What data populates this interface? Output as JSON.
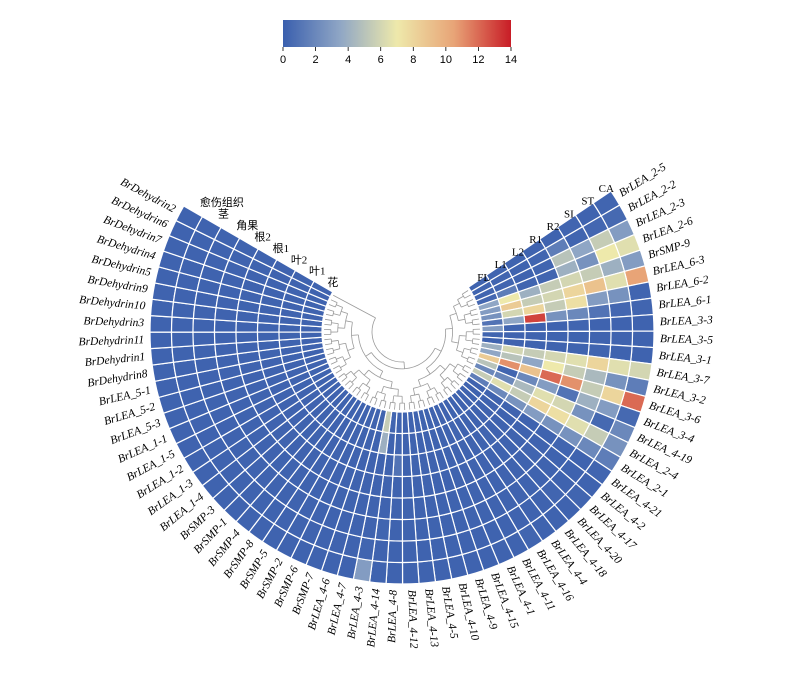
{
  "chart_data": {
    "type": "heatmap",
    "layout": "circular",
    "colorscale": {
      "min": 0,
      "max": 14,
      "ticks": [
        "0",
        "2",
        "4",
        "6",
        "8",
        "10",
        "12",
        "14"
      ],
      "stops": [
        "#3a5fae",
        "#8fa6c5",
        "#eee9ab",
        "#e8a477",
        "#c81c26"
      ]
    },
    "tracks": [
      {
        "code": "CA",
        "name": "愈伤组织"
      },
      {
        "code": "ST",
        "name": "茎"
      },
      {
        "code": "SI",
        "name": "角果"
      },
      {
        "code": "R2",
        "name": "根2"
      },
      {
        "code": "R1",
        "name": "根1"
      },
      {
        "code": "L2",
        "name": "叶2"
      },
      {
        "code": "L1",
        "name": "叶1"
      },
      {
        "code": "FL",
        "name": "花"
      }
    ],
    "genes": [
      "BrLEA_2-5",
      "BrLEA_2-2",
      "BrLEA_2-3",
      "BrLEA_2-6",
      "BrSMP-9",
      "BrLEA_6-3",
      "BrLEA_6-2",
      "BrLEA_6-1",
      "BrLEA_3-3",
      "BrLEA_3-5",
      "BrLEA_3-1",
      "BrLEA_3-7",
      "BrLEA_3-2",
      "BrLEA_3-6",
      "BrLEA_3-4",
      "BrLEA_4-19",
      "BrLEA_2-4",
      "BrLEA_2-1",
      "BrLEA_4-21",
      "BrLEA_4-2",
      "BrLEA_4-17",
      "BrLEA_4-20",
      "BrLEA_4-18",
      "BrLEA_4-4",
      "BrLEA_4-16",
      "BrLEA_4-11",
      "BrLEA_4-1",
      "BrLEA_4-15",
      "BrLEA_4-9",
      "BrLEA_4-10",
      "BrLEA_4-5",
      "BrLEA_4-13",
      "BrLEA_4-12",
      "BrLEA_4-8",
      "BrLEA_4-14",
      "BrLEA_4-3",
      "BrLEA_4-7",
      "BrLEA_4-6",
      "BrSMP-7",
      "BrSMP-6",
      "BrSMP-2",
      "BrSMP-5",
      "BrSMP-8",
      "BrSMP-4",
      "BrSMP-1",
      "BrSMP-3",
      "BrLEA_1-4",
      "BrLEA_1-3",
      "BrLEA_1-2",
      "BrLEA_1-5",
      "BrLEA_1-1",
      "BrLEA_5-3",
      "BrLEA_5-2",
      "BrLEA_5-1",
      "BrDehydrin8",
      "BrDehydrin1",
      "BrDehydrin11",
      "BrDehydrin3",
      "BrDehydrin10",
      "BrDehydrin9",
      "BrDehydrin5",
      "BrDehydrin4",
      "BrDehydrin7",
      "BrDehydrin6",
      "BrDehydrin2"
    ],
    "values": [
      [
        0.3,
        0.2,
        0.3,
        0.2,
        0.2,
        0.2,
        0.3,
        0.2
      ],
      [
        0.5,
        0.4,
        0.3,
        1.5,
        0.3,
        0.2,
        0.3,
        0.3
      ],
      [
        3.0,
        5.5,
        3.5,
        5.0,
        0.3,
        0.2,
        0.3,
        0.3
      ],
      [
        6.5,
        7.0,
        2.5,
        4.0,
        0.3,
        0.3,
        1.5,
        0.4
      ],
      [
        3.0,
        4.0,
        5.5,
        6.0,
        5.5,
        4.0,
        7.0,
        3.5
      ],
      [
        10.5,
        6.5,
        9.0,
        8.0,
        6.0,
        5.5,
        8.5,
        3.0
      ],
      [
        0.3,
        2.5,
        3.0,
        7.5,
        5.5,
        8.0,
        6.0,
        2.5
      ],
      [
        0.3,
        0.4,
        1.0,
        2.0,
        2.5,
        13.0,
        3.5,
        1.0
      ],
      [
        0.2,
        0.2,
        0.2,
        0.3,
        0.2,
        0.2,
        0.3,
        3.0
      ],
      [
        0.2,
        0.2,
        0.2,
        0.2,
        0.2,
        0.2,
        0.2,
        0.3
      ],
      [
        0.2,
        0.2,
        0.3,
        0.2,
        0.2,
        0.2,
        0.2,
        0.2
      ],
      [
        6.0,
        6.5,
        8.0,
        6.5,
        6.0,
        5.5,
        6.0,
        4.0
      ],
      [
        1.5,
        2.5,
        4.5,
        5.5,
        7.0,
        3.5,
        5.0,
        3.5
      ],
      [
        12.0,
        8.0,
        5.5,
        11.0,
        12.0,
        9.0,
        11.0,
        8.5
      ],
      [
        0.5,
        3.0,
        4.0,
        1.0,
        3.0,
        2.0,
        0.3,
        5.0
      ],
      [
        2.0,
        0.5,
        2.5,
        6.0,
        6.5,
        4.5,
        2.0,
        2.0
      ],
      [
        2.5,
        5.5,
        6.5,
        7.5,
        8.0,
        5.5,
        6.5,
        5.5
      ],
      [
        1.5,
        2.0,
        2.5,
        2.5,
        3.0,
        2.5,
        2.0,
        1.5
      ],
      [
        0.3,
        0.2,
        0.3,
        0.2,
        0.2,
        0.2,
        0.2,
        0.2
      ],
      [
        0.2,
        0.2,
        0.2,
        0.2,
        0.2,
        0.2,
        0.2,
        0.2
      ],
      [
        0.3,
        0.2,
        0.2,
        0.3,
        0.2,
        0.2,
        0.2,
        0.2
      ],
      [
        0.2,
        0.3,
        0.2,
        0.2,
        0.2,
        0.2,
        0.2,
        0.2
      ],
      [
        0.2,
        0.2,
        0.2,
        0.2,
        0.2,
        0.3,
        0.2,
        0.2
      ],
      [
        0.2,
        0.2,
        0.2,
        0.2,
        0.2,
        0.2,
        0.2,
        0.2
      ],
      [
        0.3,
        0.2,
        0.2,
        0.2,
        0.2,
        0.2,
        0.2,
        0.2
      ],
      [
        0.2,
        0.2,
        0.2,
        0.2,
        0.2,
        0.2,
        0.3,
        0.2
      ],
      [
        0.2,
        0.2,
        0.2,
        0.2,
        0.2,
        0.2,
        0.2,
        0.2
      ],
      [
        0.2,
        0.2,
        0.2,
        0.2,
        0.2,
        0.2,
        0.2,
        0.2
      ],
      [
        0.2,
        0.2,
        0.2,
        0.2,
        0.2,
        0.2,
        0.2,
        0.2
      ],
      [
        0.2,
        0.2,
        0.2,
        0.2,
        0.2,
        0.2,
        0.2,
        0.2
      ],
      [
        0.2,
        0.2,
        0.2,
        0.2,
        0.2,
        0.2,
        0.2,
        0.2
      ],
      [
        0.2,
        0.2,
        0.2,
        0.2,
        0.2,
        0.2,
        0.2,
        0.2
      ],
      [
        0.2,
        0.2,
        0.2,
        0.2,
        0.2,
        0.2,
        0.2,
        0.2
      ],
      [
        0.2,
        0.2,
        0.2,
        0.2,
        0.2,
        1.0,
        0.3,
        0.2
      ],
      [
        0.2,
        0.2,
        0.3,
        0.2,
        0.2,
        0.2,
        0.2,
        0.3
      ],
      [
        3.0,
        0.3,
        0.2,
        0.2,
        0.2,
        0.2,
        4.0,
        5.5
      ],
      [
        0.2,
        0.2,
        0.2,
        0.2,
        0.2,
        0.2,
        0.2,
        0.2
      ],
      [
        0.2,
        0.2,
        0.2,
        0.2,
        0.2,
        0.2,
        0.2,
        0.2
      ],
      [
        0.2,
        0.2,
        0.2,
        0.2,
        0.2,
        0.2,
        0.2,
        0.2
      ],
      [
        0.2,
        0.2,
        0.2,
        0.2,
        0.2,
        0.2,
        0.2,
        0.2
      ],
      [
        0.2,
        0.2,
        0.2,
        0.2,
        0.2,
        0.2,
        0.2,
        0.2
      ],
      [
        0.2,
        0.2,
        0.2,
        0.2,
        0.2,
        0.2,
        0.2,
        0.2
      ],
      [
        0.2,
        0.2,
        0.2,
        0.2,
        0.2,
        0.2,
        0.2,
        0.2
      ],
      [
        0.2,
        0.2,
        0.2,
        0.2,
        0.2,
        0.2,
        0.2,
        0.2
      ],
      [
        0.2,
        0.2,
        0.2,
        0.2,
        0.2,
        0.2,
        0.2,
        0.2
      ],
      [
        0.2,
        0.2,
        0.2,
        0.2,
        0.2,
        0.2,
        0.2,
        0.2
      ],
      [
        0.2,
        0.2,
        0.2,
        0.2,
        0.2,
        0.2,
        0.2,
        0.2
      ],
      [
        0.2,
        0.2,
        0.2,
        0.2,
        0.2,
        0.2,
        0.2,
        0.2
      ],
      [
        0.2,
        0.2,
        0.2,
        0.2,
        0.2,
        0.2,
        0.2,
        0.2
      ],
      [
        0.2,
        0.2,
        0.2,
        0.2,
        0.2,
        0.2,
        0.2,
        0.2
      ],
      [
        0.2,
        0.2,
        0.2,
        0.2,
        0.2,
        0.2,
        0.2,
        0.2
      ],
      [
        0.2,
        0.2,
        0.2,
        0.2,
        0.2,
        0.2,
        0.2,
        0.2
      ],
      [
        0.2,
        0.2,
        0.2,
        0.2,
        0.2,
        0.2,
        0.2,
        0.2
      ],
      [
        0.2,
        0.2,
        0.2,
        0.2,
        0.2,
        0.2,
        0.2,
        0.2
      ],
      [
        0.2,
        0.2,
        0.2,
        0.2,
        0.2,
        0.2,
        0.2,
        0.2
      ],
      [
        0.2,
        0.2,
        0.2,
        0.2,
        0.2,
        0.2,
        0.2,
        0.2
      ],
      [
        0.2,
        0.2,
        0.2,
        0.2,
        0.2,
        0.2,
        0.2,
        0.2
      ],
      [
        0.2,
        0.2,
        0.2,
        0.2,
        0.2,
        0.2,
        0.2,
        0.2
      ],
      [
        0.2,
        0.2,
        0.2,
        0.2,
        0.2,
        0.2,
        0.2,
        0.2
      ],
      [
        0.2,
        0.2,
        0.2,
        0.2,
        0.2,
        0.2,
        0.2,
        0.2
      ],
      [
        0.2,
        0.2,
        0.2,
        0.2,
        0.2,
        0.2,
        0.2,
        0.2
      ],
      [
        0.2,
        0.2,
        0.2,
        0.2,
        0.2,
        0.2,
        0.2,
        0.2
      ],
      [
        0.2,
        0.2,
        0.2,
        0.2,
        0.2,
        0.2,
        0.2,
        0.2
      ],
      [
        0.2,
        0.2,
        0.2,
        0.2,
        0.2,
        0.2,
        0.2,
        0.2
      ],
      [
        0.2,
        0.2,
        0.2,
        0.2,
        0.2,
        0.2,
        0.2,
        0.2
      ]
    ]
  }
}
